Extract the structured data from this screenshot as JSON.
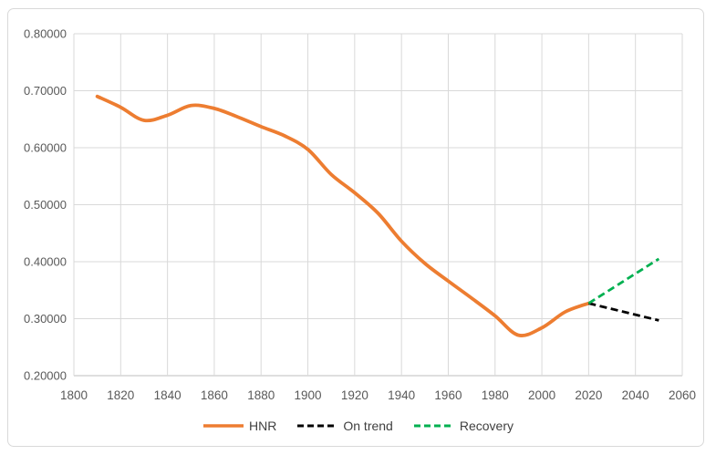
{
  "chart_data": {
    "type": "line",
    "title": "",
    "xlabel": "",
    "ylabel": "",
    "grid": true,
    "legend_position": "bottom",
    "x_axis": {
      "min": 1800,
      "max": 2060,
      "tick_step": 20,
      "ticks": [
        1800,
        1820,
        1840,
        1860,
        1880,
        1900,
        1920,
        1940,
        1960,
        1980,
        2000,
        2020,
        2040,
        2060
      ]
    },
    "y_axis": {
      "min": 0.2,
      "max": 0.8,
      "tick_step": 0.1,
      "ticks": [
        0.2,
        0.3,
        0.4,
        0.5,
        0.6,
        0.7,
        0.8
      ],
      "tick_labels": [
        "0.20000",
        "0.30000",
        "0.40000",
        "0.50000",
        "0.60000",
        "0.70000",
        "0.80000"
      ]
    },
    "ylim": [
      0.2,
      0.8
    ],
    "xlim": [
      1800,
      2060
    ],
    "series": [
      {
        "name": "HNR",
        "color": "#ED7D31",
        "style": "solid",
        "smooth": true,
        "x": [
          1810,
          1820,
          1830,
          1840,
          1850,
          1860,
          1870,
          1880,
          1890,
          1900,
          1910,
          1920,
          1930,
          1940,
          1950,
          1960,
          1970,
          1980,
          1990,
          2000,
          2010,
          2020
        ],
        "y": [
          0.69,
          0.671,
          0.648,
          0.657,
          0.674,
          0.669,
          0.654,
          0.637,
          0.621,
          0.597,
          0.553,
          0.521,
          0.485,
          0.436,
          0.397,
          0.366,
          0.336,
          0.305,
          0.271,
          0.284,
          0.312,
          0.327
        ]
      },
      {
        "name": "On trend",
        "color": "#000000",
        "style": "dashed",
        "smooth": false,
        "x": [
          2020,
          2030,
          2040,
          2050
        ],
        "y": [
          0.327,
          0.317,
          0.307,
          0.297
        ]
      },
      {
        "name": "Recovery",
        "color": "#00B050",
        "style": "dashed",
        "smooth": false,
        "x": [
          2020,
          2030,
          2040,
          2050
        ],
        "y": [
          0.327,
          0.353,
          0.379,
          0.405
        ]
      }
    ]
  },
  "colors": {
    "background": "#FFFFFF",
    "gridline": "#D9D9D9",
    "axis_line": "#BFBFBF",
    "tick_text": "#595959",
    "legend_text": "#404040",
    "frame_border": "#D9D9D9",
    "hnr_orange": "#ED7D31",
    "on_trend_black": "#000000",
    "recovery_green": "#00B050"
  }
}
